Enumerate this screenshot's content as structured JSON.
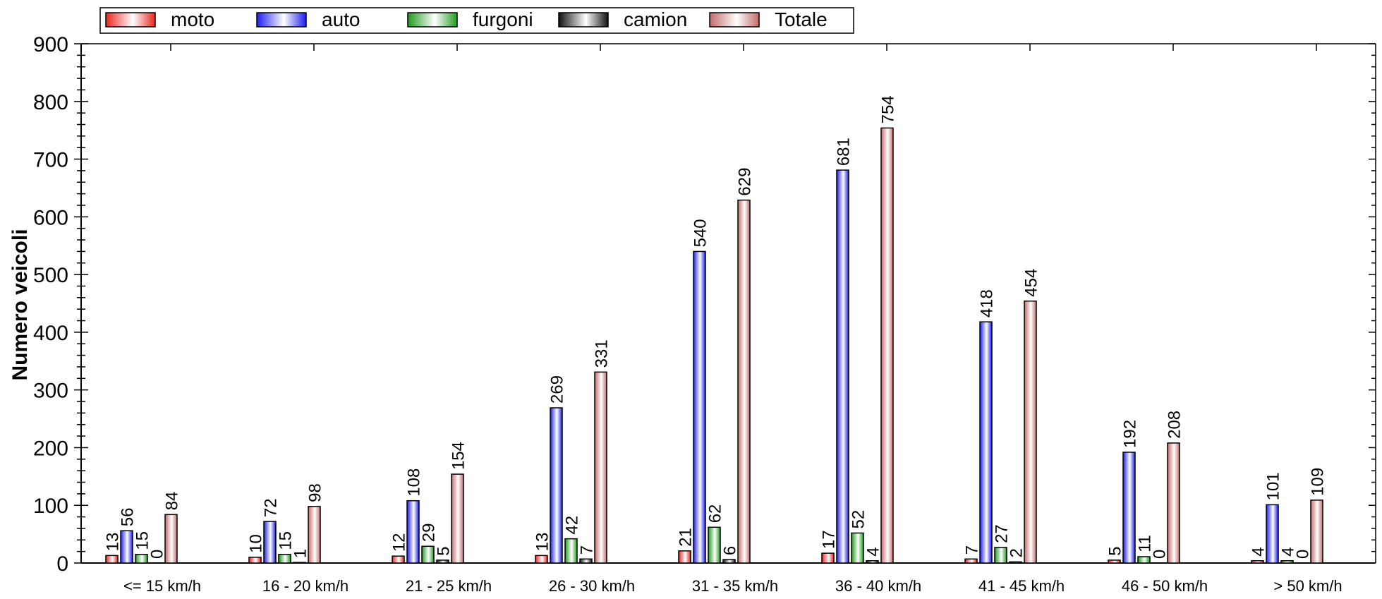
{
  "chart_data": {
    "type": "bar",
    "title": "",
    "xlabel": "",
    "ylabel": "Numero veicoli",
    "ylim": [
      0,
      900
    ],
    "yticks": [
      "0",
      "100",
      "200",
      "300",
      "400",
      "500",
      "600",
      "700",
      "800",
      "900"
    ],
    "grid": false,
    "legend_position": "top-left",
    "categories": [
      "<=  15  km/h",
      "16 -  20  km/h",
      "21 -  25  km/h",
      "26 -  30  km/h",
      "31 -  35  km/h",
      "36 -  40  km/h",
      "41 -  45  km/h",
      "46 -  50  km/h",
      ">  50  km/h"
    ],
    "series": [
      {
        "name": "moto",
        "color": "#e8241f",
        "values": [
          13,
          10,
          12,
          13,
          21,
          17,
          7,
          5,
          4
        ]
      },
      {
        "name": "auto",
        "color": "#1c1cf0",
        "values": [
          56,
          72,
          108,
          269,
          540,
          681,
          418,
          192,
          101
        ]
      },
      {
        "name": "furgoni",
        "color": "#1f9a1f",
        "values": [
          15,
          15,
          29,
          42,
          62,
          52,
          27,
          11,
          4
        ]
      },
      {
        "name": "camion",
        "color": "#111111",
        "values": [
          0,
          1,
          5,
          7,
          6,
          4,
          2,
          0,
          0
        ]
      },
      {
        "name": "Totale",
        "color": "#c46a6a",
        "values": [
          84,
          98,
          154,
          331,
          629,
          754,
          454,
          208,
          109
        ]
      }
    ]
  }
}
